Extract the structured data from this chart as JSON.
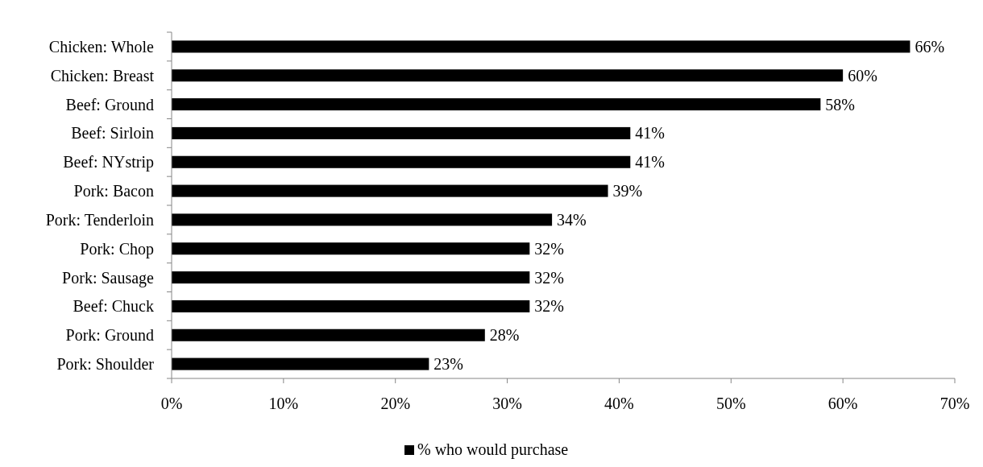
{
  "chart_data": {
    "type": "bar",
    "orientation": "horizontal",
    "categories": [
      "Chicken: Whole",
      "Chicken: Breast",
      "Beef: Ground",
      "Beef: Sirloin",
      "Beef: NYstrip",
      "Pork: Bacon",
      "Pork: Tenderloin",
      "Pork: Chop",
      "Pork: Sausage",
      "Beef: Chuck",
      "Pork: Ground",
      "Pork: Shoulder"
    ],
    "series": [
      {
        "name": "% who would purchase",
        "color": "#000000",
        "values": [
          66,
          60,
          58,
          41,
          41,
          39,
          34,
          32,
          32,
          32,
          28,
          23
        ],
        "value_labels": [
          "66%",
          "60%",
          "58%",
          "41%",
          "41%",
          "39%",
          "34%",
          "32%",
          "32%",
          "32%",
          "28%",
          "23%"
        ]
      }
    ],
    "xlim": [
      0,
      70
    ],
    "xticks": [
      {
        "value": 0,
        "label": "0%"
      },
      {
        "value": 10,
        "label": "10%"
      },
      {
        "value": 20,
        "label": "20%"
      },
      {
        "value": 30,
        "label": "30%"
      },
      {
        "value": 40,
        "label": "40%"
      },
      {
        "value": 50,
        "label": "50%"
      },
      {
        "value": 60,
        "label": "60%"
      },
      {
        "value": 70,
        "label": "70%"
      }
    ],
    "grid": false,
    "legend": "bottom"
  }
}
